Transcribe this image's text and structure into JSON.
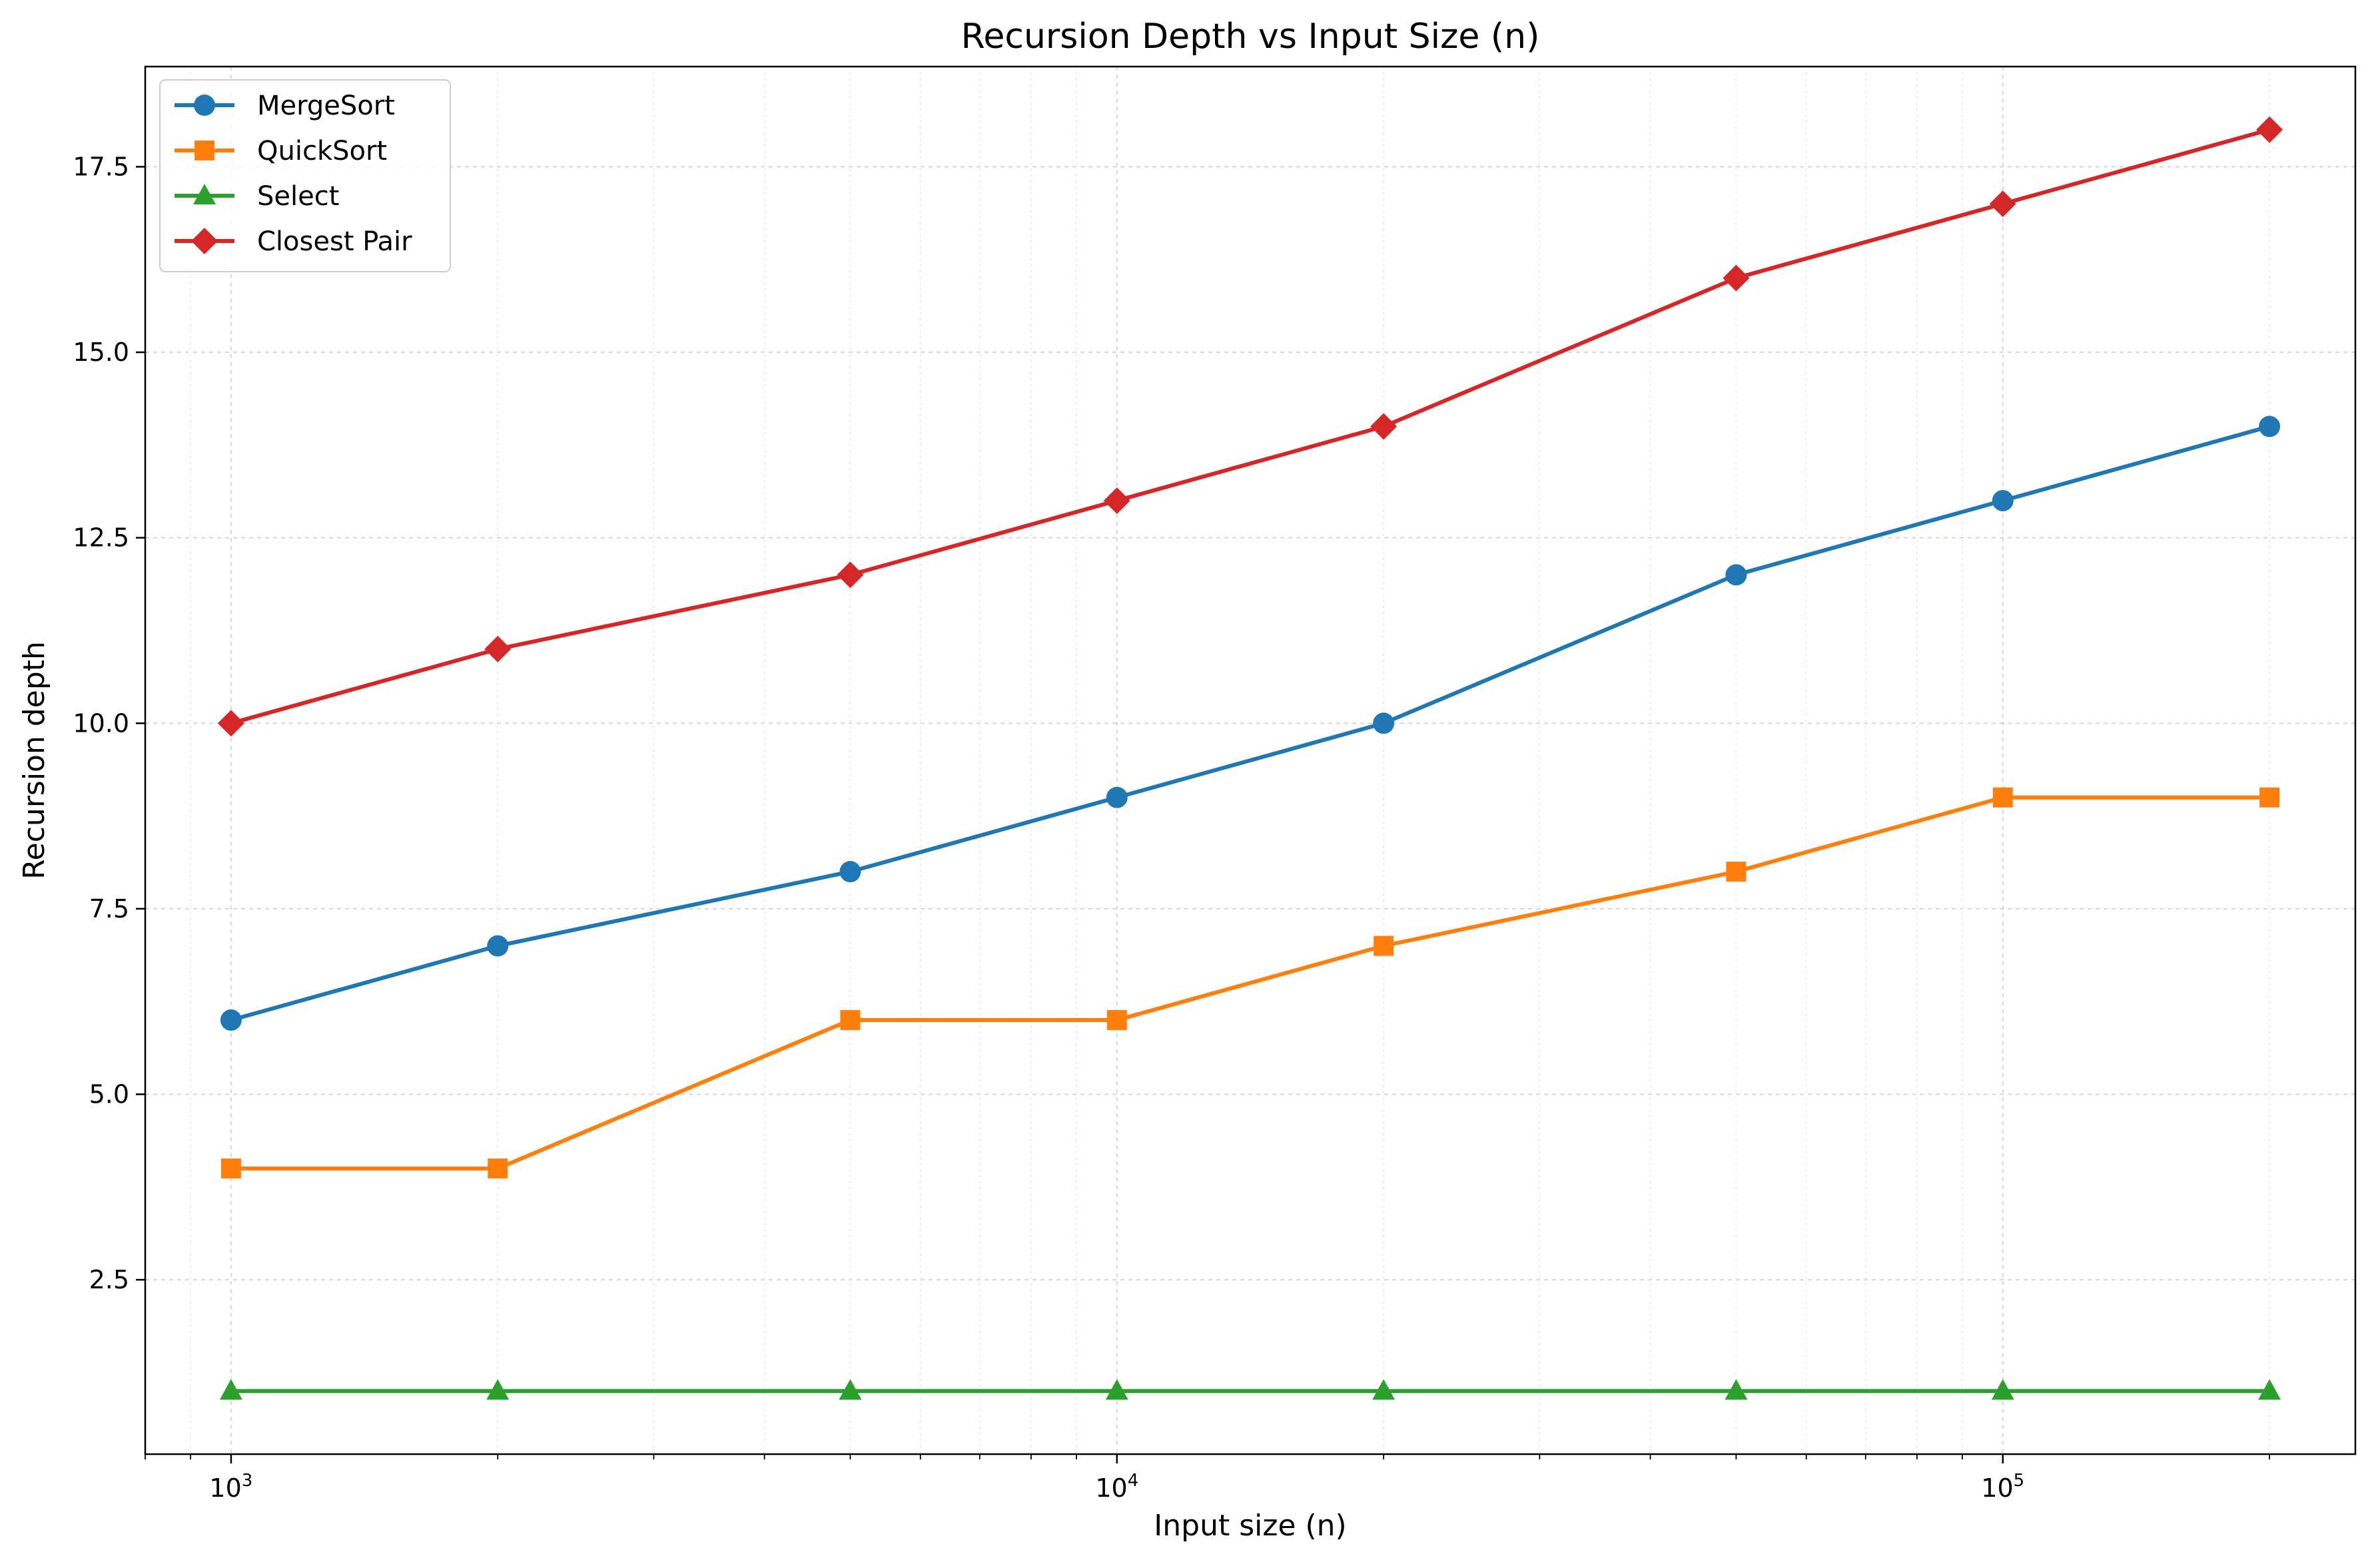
{
  "chart_data": {
    "type": "line",
    "title": "Recursion Depth vs Input Size (n)",
    "xlabel": "Input size (n)",
    "ylabel": "Recursion depth",
    "xscale": "log",
    "xlim": [
      800,
      250000
    ],
    "ylim": [
      0.15,
      18.85
    ],
    "x": [
      1000,
      2000,
      5000,
      10000,
      20000,
      50000,
      100000,
      200000
    ],
    "x_ticks": [
      {
        "value": 1000,
        "base": "10",
        "exp": "3"
      },
      {
        "value": 10000,
        "base": "10",
        "exp": "4"
      },
      {
        "value": 100000,
        "base": "10",
        "exp": "5"
      }
    ],
    "y_ticks": [
      {
        "value": 2.5,
        "label": "2.5"
      },
      {
        "value": 5.0,
        "label": "5.0"
      },
      {
        "value": 7.5,
        "label": "7.5"
      },
      {
        "value": 10.0,
        "label": "10.0"
      },
      {
        "value": 12.5,
        "label": "12.5"
      },
      {
        "value": 15.0,
        "label": "15.0"
      },
      {
        "value": 17.5,
        "label": "17.5"
      }
    ],
    "grid": true,
    "legend_position": "top-left",
    "series": [
      {
        "name": "MergeSort",
        "color": "#1f77b4",
        "marker": "circle",
        "values": [
          6,
          7,
          8,
          9,
          10,
          12,
          13,
          14
        ]
      },
      {
        "name": "QuickSort",
        "color": "#ff7f0e",
        "marker": "square",
        "values": [
          4,
          4,
          6,
          6,
          7,
          8,
          9,
          9
        ]
      },
      {
        "name": "Select",
        "color": "#2ca02c",
        "marker": "triangle",
        "values": [
          1,
          1,
          1,
          1,
          1,
          1,
          1,
          1
        ]
      },
      {
        "name": "Closest Pair",
        "color": "#d62728",
        "marker": "diamond",
        "values": [
          10,
          11,
          12,
          13,
          14,
          16,
          17,
          18
        ]
      }
    ]
  }
}
